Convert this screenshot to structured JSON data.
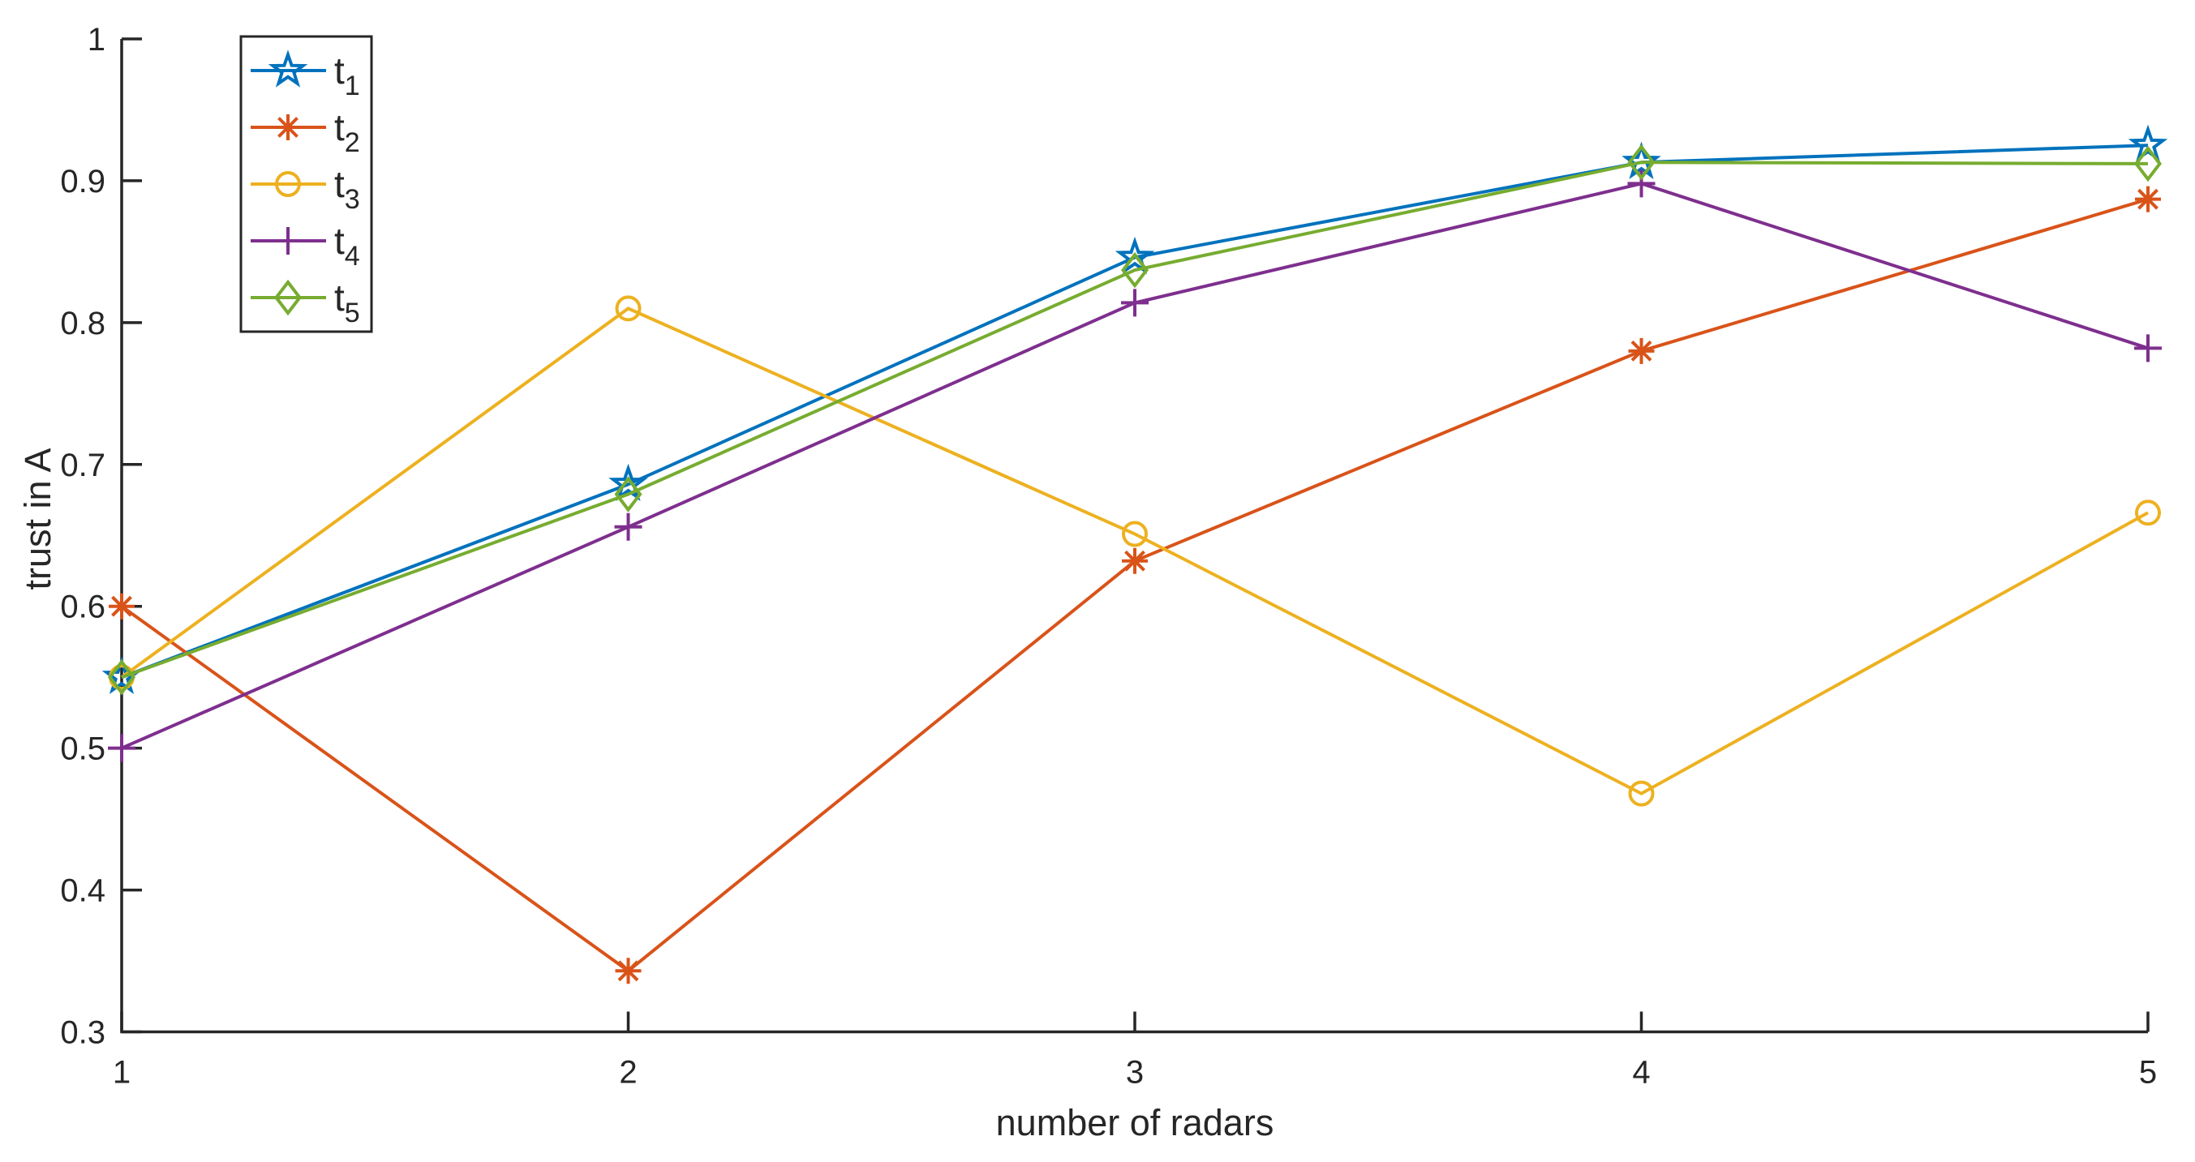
{
  "figure": {
    "background": "#ffffff",
    "axis_color": "#262626"
  },
  "chart_data": {
    "type": "line",
    "title": "",
    "xlabel": "number of radars",
    "ylabel": "trust in A",
    "x": [
      1,
      2,
      3,
      4,
      5
    ],
    "xlim": [
      1,
      5
    ],
    "ylim": [
      0.3,
      1.0
    ],
    "xticks": [
      1,
      2,
      3,
      4,
      5
    ],
    "xtick_labels": [
      "1",
      "2",
      "3",
      "4",
      "5"
    ],
    "yticks": [
      0.3,
      0.4,
      0.5,
      0.6,
      0.7,
      0.8,
      0.9,
      1.0
    ],
    "ytick_labels": [
      "0.3",
      "0.4",
      "0.5",
      "0.6",
      "0.7",
      "0.8",
      "0.9",
      "1"
    ],
    "grid": false,
    "legend": {
      "position": "top-left",
      "entries": [
        "t_1",
        "t_2",
        "t_3",
        "t_4",
        "t_5"
      ]
    },
    "series": [
      {
        "name": "t_1",
        "label_base": "t",
        "label_sub": "1",
        "marker": "star",
        "color": "#0072BD",
        "values": [
          0.55,
          0.686,
          0.846,
          0.913,
          0.925
        ]
      },
      {
        "name": "t_2",
        "label_base": "t",
        "label_sub": "2",
        "marker": "asterisk",
        "color": "#D95319",
        "values": [
          0.6,
          0.343,
          0.632,
          0.78,
          0.887
        ]
      },
      {
        "name": "t_3",
        "label_base": "t",
        "label_sub": "3",
        "marker": "circle",
        "color": "#EDB120",
        "values": [
          0.55,
          0.81,
          0.651,
          0.468,
          0.666
        ]
      },
      {
        "name": "t_4",
        "label_base": "t",
        "label_sub": "4",
        "marker": "plus",
        "color": "#7E2F8E",
        "values": [
          0.5,
          0.656,
          0.814,
          0.898,
          0.782
        ]
      },
      {
        "name": "t_5",
        "label_base": "t",
        "label_sub": "5",
        "marker": "diamond",
        "color": "#77AC30",
        "values": [
          0.55,
          0.679,
          0.837,
          0.913,
          0.912
        ]
      }
    ]
  }
}
